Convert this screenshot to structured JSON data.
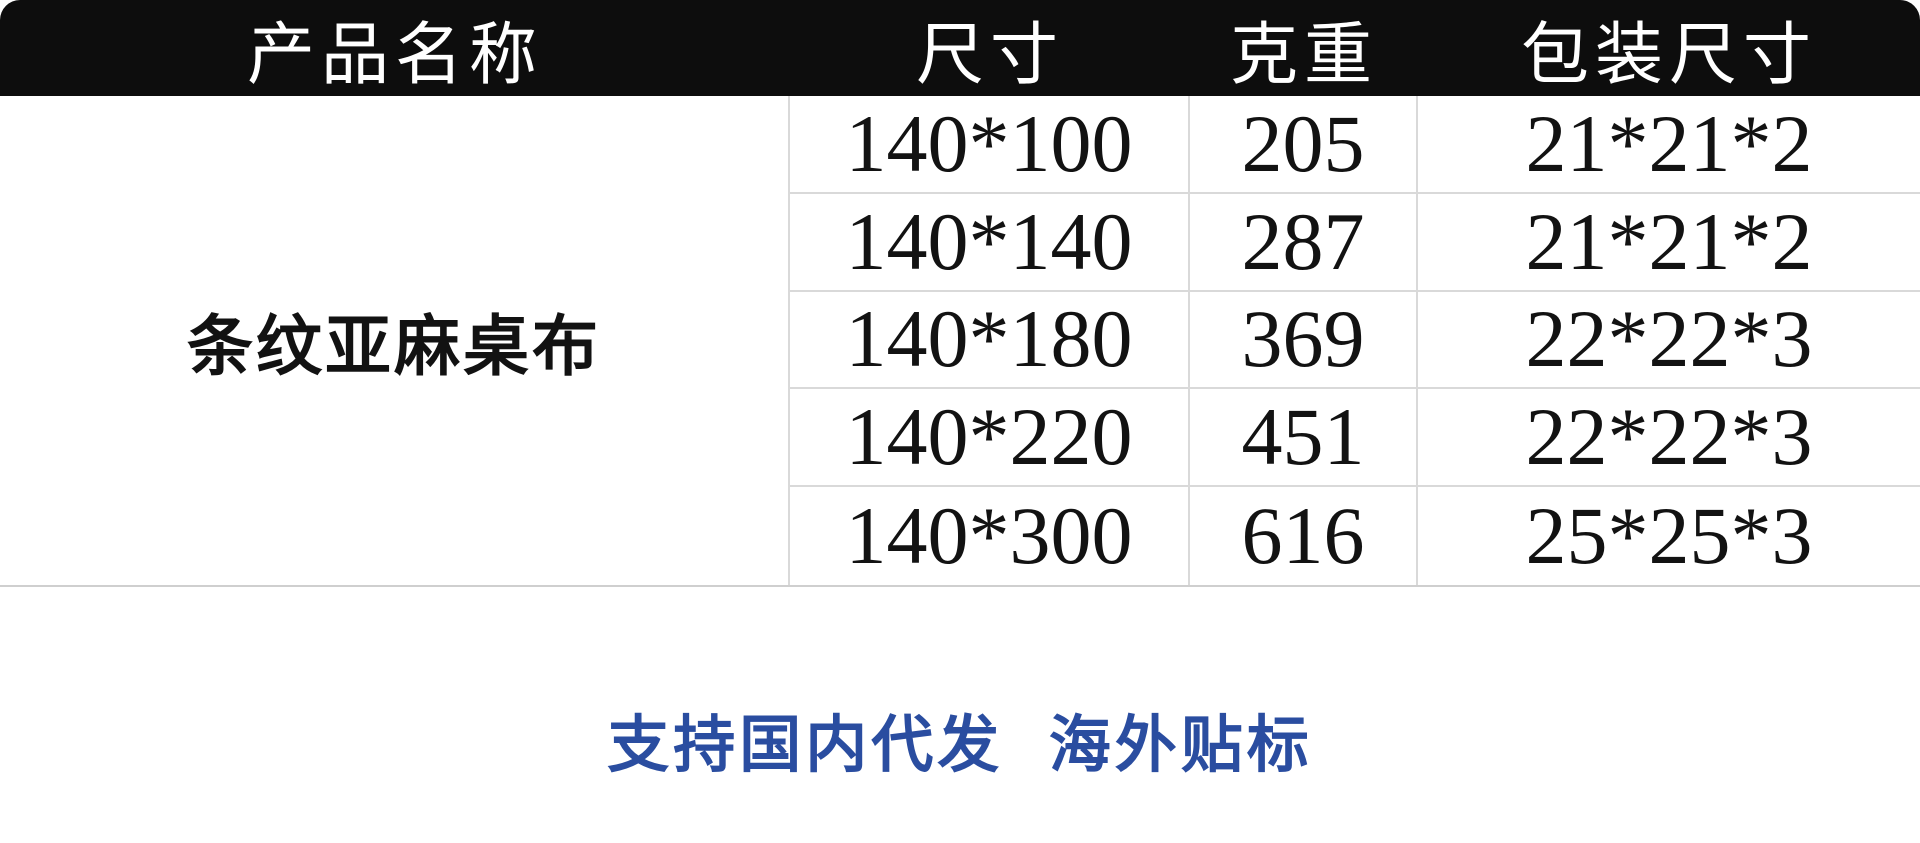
{
  "table": {
    "columns": [
      {
        "key": "product",
        "label": "产品名称"
      },
      {
        "key": "size",
        "label": "尺寸"
      },
      {
        "key": "weight",
        "label": "克重"
      },
      {
        "key": "packaging",
        "label": "包装尺寸"
      }
    ],
    "product_name": "条纹亚麻桌布",
    "rows": [
      {
        "size": "140*100",
        "weight": "205",
        "packaging": "21*21*2"
      },
      {
        "size": "140*140",
        "weight": "287",
        "packaging": "21*21*2"
      },
      {
        "size": "140*180",
        "weight": "369",
        "packaging": "22*22*3"
      },
      {
        "size": "140*220",
        "weight": "451",
        "packaging": "22*22*3"
      },
      {
        "size": "140*300",
        "weight": "616",
        "packaging": "25*25*3"
      }
    ]
  },
  "note": {
    "text": "支持国内代发 海外贴标"
  },
  "colors": {
    "header_bg": "#0d0d0d",
    "header_text": "#ffffff",
    "body_text": "#121212",
    "divider": "#d9d9d9",
    "note_blue": "#2a4da0"
  }
}
